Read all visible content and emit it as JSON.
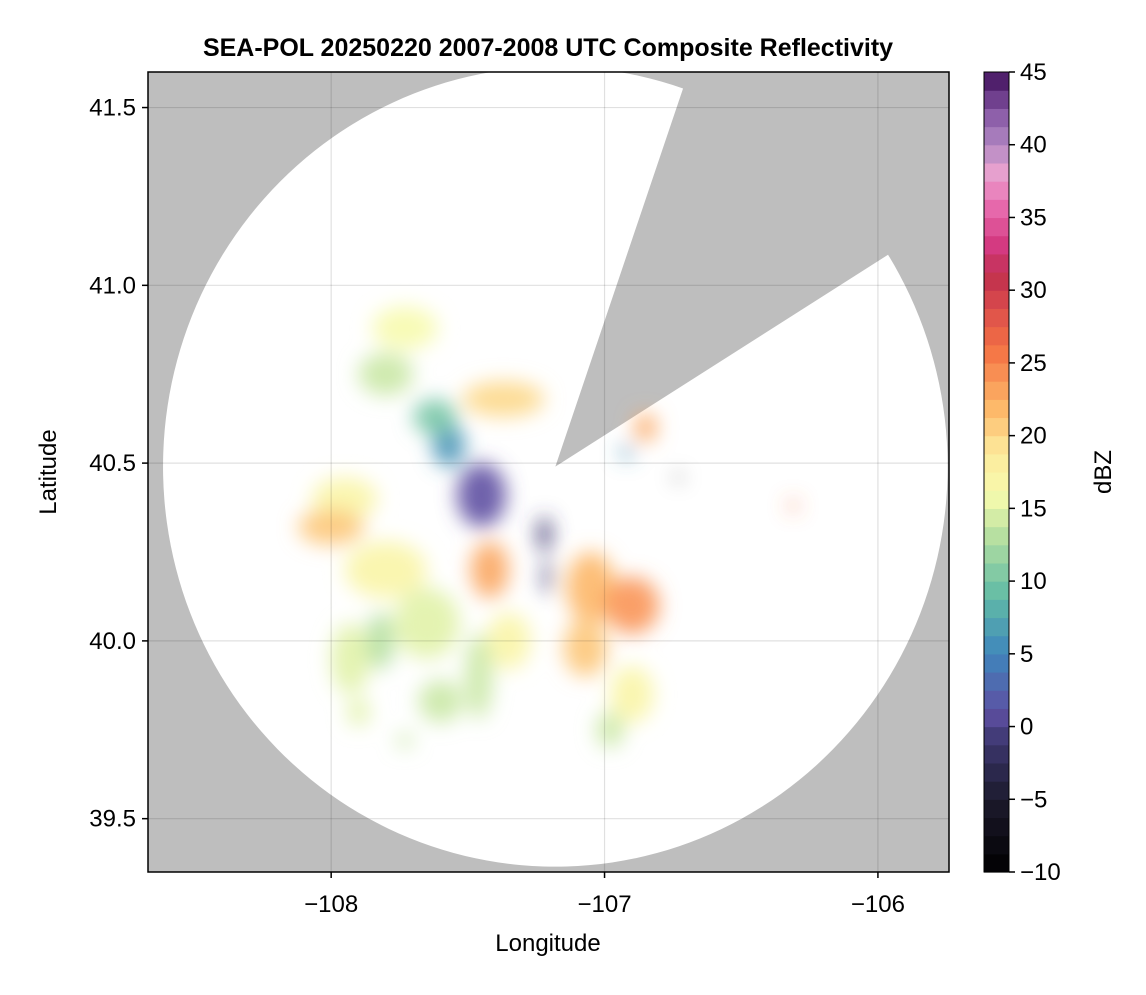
{
  "chart_data": {
    "type": "heatmap",
    "title": "SEA-POL 20250220 2007-2008 UTC Composite Reflectivity",
    "xlabel": "Longitude",
    "ylabel": "Latitude",
    "xlim": [
      -108.67,
      -105.74
    ],
    "ylim": [
      39.35,
      41.6
    ],
    "xticks": [
      -108,
      -107,
      -106
    ],
    "xtick_labels": [
      "−108",
      "−107",
      "−106"
    ],
    "yticks": [
      39.5,
      40.0,
      40.5,
      41.0,
      41.5
    ],
    "ytick_labels": [
      "39.5",
      "40.0",
      "40.5",
      "41.0",
      "41.5"
    ],
    "grid": true,
    "background_color": "#bebebe",
    "coverage_color": "#ffffff",
    "radar": {
      "center_lon": -107.18,
      "center_lat": 40.49,
      "range_lat_deg": 1.125,
      "range_lon_deg": 1.435,
      "blocked_sector_azimuths_deg": [
        19,
        58
      ]
    },
    "colorbar": {
      "label": "dBZ",
      "min": -10,
      "max": 45,
      "step": 1.25,
      "ticks": [
        -10,
        -5,
        0,
        5,
        10,
        15,
        20,
        25,
        30,
        35,
        40,
        45
      ],
      "tick_labels": [
        "−10",
        "−5",
        "0",
        "5",
        "10",
        "15",
        "20",
        "25",
        "30",
        "35",
        "40",
        "45"
      ],
      "colormap_stops": [
        {
          "value": -10,
          "color": "#000000"
        },
        {
          "value": -5,
          "color": "#1c1a2c"
        },
        {
          "value": -1,
          "color": "#3d3770"
        },
        {
          "value": 1,
          "color": "#5e4fa2"
        },
        {
          "value": 5,
          "color": "#3f86bc"
        },
        {
          "value": 9,
          "color": "#62bca6"
        },
        {
          "value": 13,
          "color": "#b4dfa0"
        },
        {
          "value": 16,
          "color": "#f7fbae"
        },
        {
          "value": 19,
          "color": "#fde89a"
        },
        {
          "value": 22,
          "color": "#fdb768"
        },
        {
          "value": 26,
          "color": "#f47244"
        },
        {
          "value": 29,
          "color": "#d94a4c"
        },
        {
          "value": 31,
          "color": "#c0304d"
        },
        {
          "value": 33,
          "color": "#d3387f"
        },
        {
          "value": 36,
          "color": "#e96fb1"
        },
        {
          "value": 38,
          "color": "#e9a1cf"
        },
        {
          "value": 40,
          "color": "#b289c4"
        },
        {
          "value": 42,
          "color": "#8c5da8"
        },
        {
          "value": 44,
          "color": "#5a2a7a"
        },
        {
          "value": 45,
          "color": "#3e0f55"
        }
      ]
    },
    "echo_regions": [
      {
        "lon": -107.45,
        "lat": 40.41,
        "rx": 0.09,
        "ry": 0.09,
        "dbz": 1
      },
      {
        "lon": -107.22,
        "lat": 40.3,
        "rx": 0.025,
        "ry": 0.05,
        "dbz": -1
      },
      {
        "lon": -107.21,
        "lat": 40.18,
        "rx": 0.015,
        "ry": 0.05,
        "dbz": -1
      },
      {
        "lon": -107.57,
        "lat": 40.55,
        "rx": 0.06,
        "ry": 0.06,
        "dbz": 6
      },
      {
        "lon": -107.62,
        "lat": 40.63,
        "rx": 0.08,
        "ry": 0.05,
        "dbz": 10
      },
      {
        "lon": -107.37,
        "lat": 40.68,
        "rx": 0.15,
        "ry": 0.05,
        "dbz": 20
      },
      {
        "lon": -107.73,
        "lat": 40.88,
        "rx": 0.12,
        "ry": 0.06,
        "dbz": 16
      },
      {
        "lon": -107.8,
        "lat": 40.75,
        "rx": 0.1,
        "ry": 0.06,
        "dbz": 14
      },
      {
        "lon": -107.95,
        "lat": 40.4,
        "rx": 0.12,
        "ry": 0.06,
        "dbz": 17
      },
      {
        "lon": -108.0,
        "lat": 40.32,
        "rx": 0.12,
        "ry": 0.05,
        "dbz": 21
      },
      {
        "lon": -107.8,
        "lat": 40.2,
        "rx": 0.15,
        "ry": 0.08,
        "dbz": 17
      },
      {
        "lon": -107.65,
        "lat": 40.05,
        "rx": 0.12,
        "ry": 0.1,
        "dbz": 15
      },
      {
        "lon": -107.42,
        "lat": 40.2,
        "rx": 0.07,
        "ry": 0.08,
        "dbz": 23
      },
      {
        "lon": -107.35,
        "lat": 40.0,
        "rx": 0.08,
        "ry": 0.08,
        "dbz": 17
      },
      {
        "lon": -107.05,
        "lat": 40.15,
        "rx": 0.09,
        "ry": 0.1,
        "dbz": 22
      },
      {
        "lon": -106.9,
        "lat": 40.1,
        "rx": 0.1,
        "ry": 0.08,
        "dbz": 24
      },
      {
        "lon": -107.07,
        "lat": 39.98,
        "rx": 0.08,
        "ry": 0.08,
        "dbz": 21
      },
      {
        "lon": -106.9,
        "lat": 39.85,
        "rx": 0.08,
        "ry": 0.08,
        "dbz": 17
      },
      {
        "lon": -106.98,
        "lat": 39.75,
        "rx": 0.05,
        "ry": 0.05,
        "dbz": 14
      },
      {
        "lon": -107.6,
        "lat": 39.83,
        "rx": 0.08,
        "ry": 0.06,
        "dbz": 14
      },
      {
        "lon": -107.93,
        "lat": 39.95,
        "rx": 0.07,
        "ry": 0.1,
        "dbz": 15
      },
      {
        "lon": -107.82,
        "lat": 40.0,
        "rx": 0.05,
        "ry": 0.08,
        "dbz": 13
      },
      {
        "lon": -107.46,
        "lat": 39.9,
        "rx": 0.05,
        "ry": 0.12,
        "dbz": 14
      },
      {
        "lon": -106.85,
        "lat": 40.6,
        "rx": 0.04,
        "ry": 0.04,
        "dbz": 23
      },
      {
        "lon": -106.92,
        "lat": 40.53,
        "rx": 0.02,
        "ry": 0.02,
        "dbz": 6
      },
      {
        "lon": -106.73,
        "lat": 40.46,
        "rx": 0.012,
        "ry": 0.008,
        "dbz": -10
      },
      {
        "lon": -106.31,
        "lat": 40.38,
        "rx": 0.015,
        "ry": 0.015,
        "dbz": 26
      },
      {
        "lon": -107.9,
        "lat": 39.8,
        "rx": 0.04,
        "ry": 0.04,
        "dbz": 15
      },
      {
        "lon": -107.73,
        "lat": 39.72,
        "rx": 0.03,
        "ry": 0.02,
        "dbz": 14
      }
    ]
  }
}
